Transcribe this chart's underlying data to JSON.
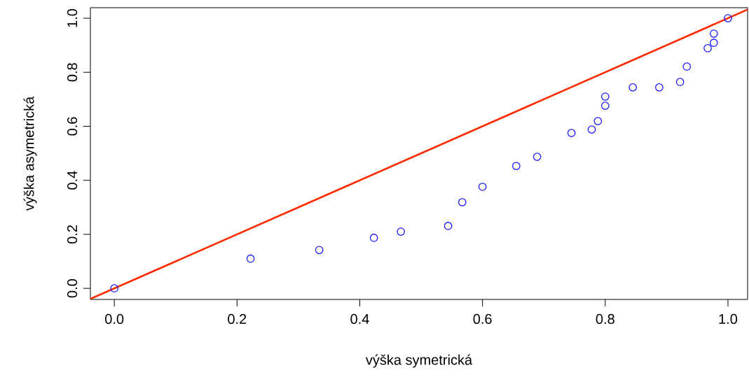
{
  "chart_data": {
    "type": "scatter",
    "xlabel": "výška symetrická",
    "ylabel": "výška asymetrická",
    "xlim": [
      -0.039,
      1.032
    ],
    "ylim": [
      -0.041,
      1.039
    ],
    "xticks": [
      {
        "value": 0,
        "label": "0.0"
      },
      {
        "value": 0.2,
        "label": "0.2"
      },
      {
        "value": 0.4,
        "label": "0.4"
      },
      {
        "value": 0.6,
        "label": "0.6"
      },
      {
        "value": 0.8,
        "label": "0.8"
      },
      {
        "value": 1,
        "label": "1.0"
      }
    ],
    "yticks": [
      {
        "value": 0,
        "label": "0.0"
      },
      {
        "value": 0.2,
        "label": "0.2"
      },
      {
        "value": 0.4,
        "label": "0.4"
      },
      {
        "value": 0.6,
        "label": "0.6"
      },
      {
        "value": 0.8,
        "label": "0.8"
      },
      {
        "value": 1,
        "label": "1.0"
      }
    ],
    "grid": false,
    "series": [
      {
        "color": "#1a1aff",
        "marker": "circle",
        "x": [
          0,
          0.222,
          0.334,
          0.423,
          0.467,
          0.544,
          0.567,
          0.6,
          0.655,
          0.689,
          0.745,
          0.778,
          0.788,
          0.8,
          0.8,
          0.845,
          0.888,
          0.922,
          0.933,
          0.967,
          0.977,
          0.977,
          1
        ],
        "values": [
          0,
          0.11,
          0.142,
          0.187,
          0.21,
          0.231,
          0.319,
          0.376,
          0.453,
          0.487,
          0.575,
          0.588,
          0.619,
          0.71,
          0.676,
          0.744,
          0.744,
          0.764,
          0.821,
          0.889,
          0.909,
          0.943,
          1
        ]
      },
      {
        "type": "line",
        "color": "#ff2a00",
        "line_style": "solid",
        "x": [
          -0.039,
          1.032
        ],
        "values": [
          -0.039,
          1.032
        ]
      }
    ]
  }
}
